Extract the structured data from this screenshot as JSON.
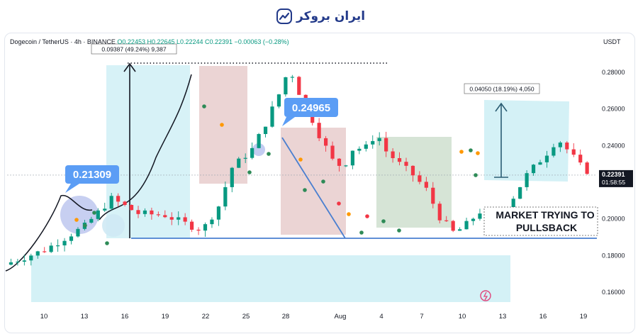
{
  "brand": {
    "name": "ایران بروکر",
    "icon": "chart-trend-logo-icon"
  },
  "header": {
    "symbol": "Dogecoin / TetherUS · 4h · BINANCE",
    "ohlc": "O0.22453 H0.22645 L0.22244 C0.22391 −0.00063 (−0.28%)",
    "currency": "USDT"
  },
  "chart_data": {
    "type": "candlestick",
    "symbol": "Dogecoin / TetherUS",
    "timeframe": "4h",
    "exchange": "BINANCE",
    "ohlc": {
      "open": 0.22453,
      "high": 0.22645,
      "low": 0.22244,
      "close": 0.22391,
      "change": -0.00063,
      "change_pct": -0.28
    },
    "y_ticks": [
      "0.28000",
      "0.26000",
      "0.24000",
      "0.20000",
      "0.18000",
      "0.16000"
    ],
    "ylim": [
      0.153,
      0.289
    ],
    "x_ticks": [
      "10",
      "13",
      "16",
      "19",
      "22",
      "25",
      "28",
      "Aug",
      "4",
      "7",
      "10",
      "13",
      "16",
      "19"
    ],
    "current_price": "0.22391",
    "countdown": "01:58:55",
    "price_series": [
      [
        0,
        0.175
      ],
      [
        3,
        0.183
      ],
      [
        6,
        0.196
      ],
      [
        8,
        0.211
      ],
      [
        10,
        0.203
      ],
      [
        12,
        0.202
      ],
      [
        14,
        0.196
      ],
      [
        14.8,
        0.194
      ],
      [
        16,
        0.207
      ],
      [
        17,
        0.228
      ],
      [
        18.5,
        0.238
      ],
      [
        19.5,
        0.252
      ],
      [
        20.5,
        0.268
      ],
      [
        21.3,
        0.283
      ],
      [
        21.8,
        0.272
      ],
      [
        22.5,
        0.262
      ],
      [
        23.5,
        0.246
      ],
      [
        24.5,
        0.232
      ],
      [
        25.3,
        0.228
      ],
      [
        26,
        0.238
      ],
      [
        27,
        0.239
      ],
      [
        27.8,
        0.247
      ],
      [
        28.5,
        0.237
      ],
      [
        29.5,
        0.23
      ],
      [
        30.5,
        0.224
      ],
      [
        31.5,
        0.216
      ],
      [
        32.5,
        0.201
      ],
      [
        33.6,
        0.192
      ],
      [
        34.5,
        0.197
      ],
      [
        35.5,
        0.204
      ],
      [
        36.3,
        0.199
      ],
      [
        37,
        0.202
      ],
      [
        38,
        0.212
      ],
      [
        39,
        0.224
      ],
      [
        40.5,
        0.236
      ],
      [
        41.3,
        0.244
      ],
      [
        42,
        0.238
      ],
      [
        43,
        0.229
      ],
      [
        43.9,
        0.224
      ]
    ],
    "annotations": {
      "label_low": "0.21309",
      "label_mid": "0.24965",
      "measure_left": "0.09387 (49.24%) 9,387",
      "measure_right": "0.04050 (18.19%) 4,050",
      "note_line1": "MARKET TRYING TO",
      "note_line2": "PULLSBACK"
    },
    "colors": {
      "up": "#089981",
      "down": "#f23645",
      "zone_blue": "#c9eef4",
      "zone_red": "#e8cccc",
      "zone_green": "#d2e1d2",
      "trend_line": "#4a7fd0",
      "label_blue": "#5b9df5",
      "curve": "#131722"
    }
  }
}
